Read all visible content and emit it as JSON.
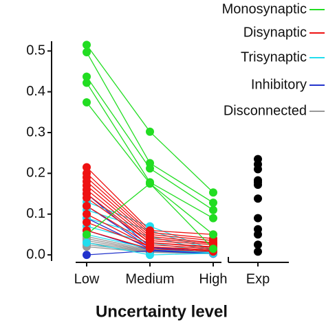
{
  "chart_data": {
    "type": "line",
    "xlabel": "Uncertainty level",
    "categories": [
      "Low",
      "Medium",
      "High"
    ],
    "ylim": [
      -0.015,
      0.524
    ],
    "yticks": [
      {
        "value": 0,
        "label": "0.0"
      },
      0.1,
      0.2,
      0.3,
      0.4,
      0.5
    ],
    "series": [
      {
        "name": "Monosynaptic",
        "color": "#22dd22",
        "lines": [
          [
            0.515,
            0.302,
            0.153
          ],
          [
            0.497,
            0.225,
            0.128
          ],
          [
            0.437,
            0.212,
            0.11
          ],
          [
            0.422,
            0.178,
            0.09
          ],
          [
            0.374,
            0.175,
            0.05
          ],
          [
            0.05,
            0.175,
            0.015
          ]
        ]
      },
      {
        "name": "Disynaptic",
        "color": "#ee1111",
        "lines": [
          [
            0.215,
            0.06,
            0.05
          ],
          [
            0.2,
            0.055,
            0.04
          ],
          [
            0.19,
            0.05,
            0.035
          ],
          [
            0.18,
            0.045,
            0.03
          ],
          [
            0.17,
            0.04,
            0.028
          ],
          [
            0.16,
            0.035,
            0.025
          ],
          [
            0.15,
            0.03,
            0.02
          ],
          [
            0.14,
            0.03,
            0.018
          ],
          [
            0.12,
            0.025,
            0.015
          ],
          [
            0.1,
            0.02,
            0.012
          ],
          [
            0.08,
            0.02,
            0.01
          ],
          [
            0.06,
            0.015,
            0.008
          ]
        ]
      },
      {
        "name": "Trisynaptic",
        "color": "#22ddee",
        "lines": [
          [
            0.13,
            0.07,
            0.012
          ],
          [
            0.11,
            0.06,
            0.01
          ],
          [
            0.09,
            0.045,
            0.008
          ],
          [
            0.07,
            0.03,
            0.006
          ],
          [
            0.05,
            0.015,
            0.005
          ],
          [
            0.03,
            0.0,
            0.004
          ]
        ]
      },
      {
        "name": "Inhibitory",
        "color": "#2233cc",
        "lines": [
          [
            0.15,
            0.02,
            0.006
          ],
          [
            0.12,
            0.018,
            0.005
          ],
          [
            0.09,
            0.015,
            0.005
          ],
          [
            0.06,
            0.012,
            0.004
          ],
          [
            0.0,
            0.01,
            0.003
          ]
        ]
      },
      {
        "name": "Disconnected",
        "color": "#999999",
        "lines": [
          [
            0.045,
            0.012,
            0.006
          ],
          [
            0.04,
            0.01,
            0.005
          ],
          [
            0.035,
            0.009,
            0.004
          ],
          [
            0.03,
            0.008,
            0.004
          ],
          [
            0.025,
            0.007,
            0.003
          ],
          [
            0.02,
            0.006,
            0.003
          ]
        ]
      }
    ],
    "exp": {
      "category": "Exp",
      "color": "#000000",
      "values": [
        0.235,
        0.222,
        0.21,
        0.183,
        0.178,
        0.172,
        0.138,
        0.09,
        0.063,
        0.05,
        0.025,
        0.008
      ]
    }
  }
}
